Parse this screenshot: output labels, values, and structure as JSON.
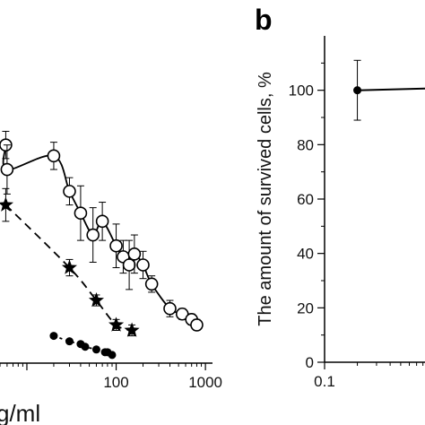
{
  "chart_data": [
    {
      "panel": "a",
      "type": "scatter",
      "title": "",
      "xlabel_visible": "g/ml",
      "ylabel": "",
      "xscale": "log",
      "xlim": [
        5,
        1200
      ],
      "ylim": [
        0,
        120
      ],
      "x_ticks": [
        100,
        1000
      ],
      "x_tick_labels": [
        "100",
        "1000"
      ],
      "grid": false,
      "series": [
        {
          "marker": "open-circle",
          "line": "solid",
          "points": [
            {
              "x": 5.8,
              "y": 80,
              "err": 5
            },
            {
              "x": 6,
              "y": 71,
              "err": 9
            },
            {
              "x": 20,
              "y": 76,
              "err": 5
            },
            {
              "x": 30,
              "y": 63,
              "err": 5
            },
            {
              "x": 40,
              "y": 55,
              "err": 10
            },
            {
              "x": 55,
              "y": 47,
              "err": 10
            },
            {
              "x": 70,
              "y": 52,
              "err": 7
            },
            {
              "x": 100,
              "y": 43,
              "err": 8
            },
            {
              "x": 120,
              "y": 39,
              "err": 6
            },
            {
              "x": 140,
              "y": 36,
              "err": 9
            },
            {
              "x": 160,
              "y": 40,
              "err": 7
            },
            {
              "x": 200,
              "y": 36,
              "err": 5
            },
            {
              "x": 250,
              "y": 29,
              "err": 3
            },
            {
              "x": 400,
              "y": 20,
              "err": 3
            },
            {
              "x": 550,
              "y": 18,
              "err": 2
            },
            {
              "x": 700,
              "y": 16,
              "err": 2
            },
            {
              "x": 800,
              "y": 14,
              "err": 2
            }
          ]
        },
        {
          "marker": "star",
          "line": "dashed",
          "points": [
            {
              "x": 5.8,
              "y": 58,
              "err": 6
            },
            {
              "x": 30,
              "y": 35,
              "err": 3
            },
            {
              "x": 60,
              "y": 23,
              "err": 2
            },
            {
              "x": 100,
              "y": 14,
              "err": 2
            },
            {
              "x": 150,
              "y": 12,
              "err": 2
            }
          ]
        },
        {
          "marker": "filled-circle",
          "line": "dotted",
          "points": [
            {
              "x": 20,
              "y": 10
            },
            {
              "x": 30,
              "y": 8
            },
            {
              "x": 40,
              "y": 7
            },
            {
              "x": 45,
              "y": 6
            },
            {
              "x": 60,
              "y": 5
            },
            {
              "x": 75,
              "y": 4
            },
            {
              "x": 80,
              "y": 4
            },
            {
              "x": 90,
              "y": 3
            }
          ]
        }
      ]
    },
    {
      "panel": "b",
      "panel_label": "b",
      "type": "line",
      "title": "",
      "xlabel": "",
      "ylabel": "The amount of survived cells, %",
      "xscale": "log",
      "xlim": [
        0.1,
        2
      ],
      "ylim": [
        0,
        120
      ],
      "y_ticks": [
        0,
        20,
        40,
        60,
        80,
        100
      ],
      "y_tick_labels": [
        "0",
        "20",
        "40",
        "60",
        "80",
        "100"
      ],
      "x_ticks": [
        0.1
      ],
      "x_tick_labels": [
        "0.1"
      ],
      "grid": false,
      "series": [
        {
          "marker": "filled-circle",
          "line": "solid",
          "points": [
            {
              "x": 0.2,
              "y": 100,
              "err": 11
            },
            {
              "x": 2,
              "y": 101
            }
          ]
        }
      ]
    }
  ]
}
